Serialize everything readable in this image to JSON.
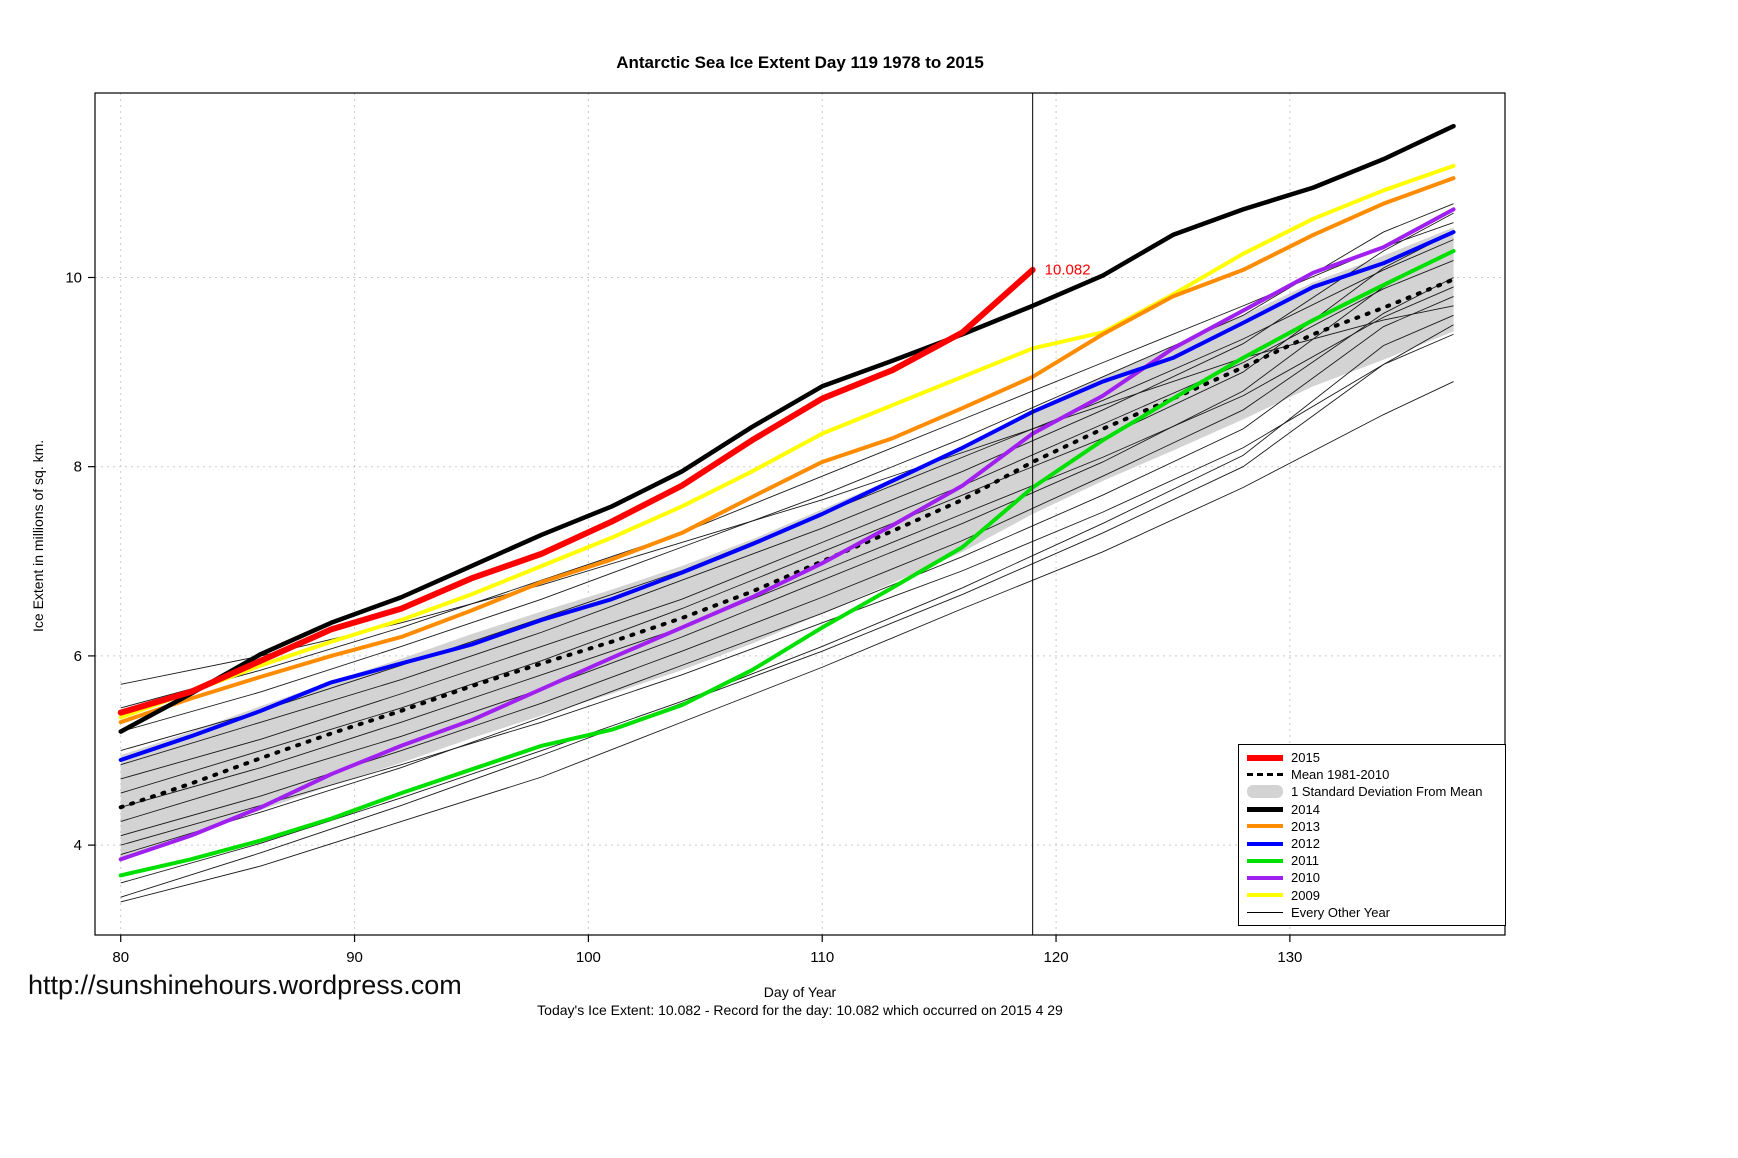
{
  "watermark": "http://sunshinehours.wordpress.com",
  "footer": "Today's Ice Extent: 10.082  - Record for the day: 10.082 which occurred on 2015 4 29",
  "chart_data": {
    "type": "line",
    "title": "Antarctic Sea Ice Extent Day 119 1978 to 2015",
    "xlabel": "Day of Year",
    "ylabel": "Ice Extent in millions of sq. km.",
    "xlim": [
      78.9,
      139.2
    ],
    "ylim": [
      3.05,
      11.95
    ],
    "xticks": [
      80,
      90,
      100,
      110,
      120,
      130
    ],
    "yticks": [
      4,
      6,
      8,
      10
    ],
    "grid": true,
    "legend_position": "bottom-right",
    "vline_x": 119,
    "annotation": {
      "text": "10.082",
      "x": 119,
      "y": 10.082,
      "color": "#FF0000"
    },
    "x": [
      80,
      83,
      86,
      89,
      92,
      95,
      98,
      101,
      104,
      107,
      110,
      113,
      116,
      119,
      122,
      125,
      128,
      131,
      134,
      137
    ],
    "band": {
      "label": "1 Standard Deviation From Mean",
      "color": "#D3D3D3",
      "upper": [
        4.95,
        5.2,
        5.47,
        5.73,
        5.97,
        6.23,
        6.47,
        6.7,
        6.95,
        7.23,
        7.55,
        7.87,
        8.2,
        8.6,
        8.95,
        9.27,
        9.6,
        9.95,
        10.23,
        10.53
      ],
      "lower": [
        3.85,
        4.1,
        4.37,
        4.63,
        4.87,
        5.13,
        5.37,
        5.6,
        5.85,
        6.13,
        6.45,
        6.77,
        7.1,
        7.5,
        7.85,
        8.17,
        8.5,
        8.85,
        9.13,
        9.43
      ]
    },
    "series": [
      {
        "name": "Mean 1981-2010",
        "color": "#000000",
        "width": 4,
        "dash": "2 9",
        "values": [
          4.4,
          4.65,
          4.92,
          5.18,
          5.42,
          5.68,
          5.92,
          6.15,
          6.4,
          6.68,
          7.0,
          7.32,
          7.65,
          8.05,
          8.4,
          8.72,
          9.05,
          9.4,
          9.68,
          9.98
        ]
      },
      {
        "name": "2011",
        "color": "#00E000",
        "width": 4,
        "values": [
          3.68,
          3.85,
          4.05,
          4.28,
          4.55,
          4.8,
          5.05,
          5.22,
          5.48,
          5.85,
          6.3,
          6.72,
          7.15,
          7.78,
          8.28,
          8.72,
          9.15,
          9.55,
          9.92,
          10.28
        ]
      },
      {
        "name": "2010",
        "color": "#A020F0",
        "width": 4,
        "values": [
          3.85,
          4.1,
          4.4,
          4.75,
          5.05,
          5.32,
          5.65,
          5.98,
          6.3,
          6.62,
          6.98,
          7.38,
          7.8,
          8.35,
          8.75,
          9.25,
          9.65,
          10.05,
          10.32,
          10.72
        ]
      },
      {
        "name": "2009",
        "color": "#FFFF00",
        "width": 4,
        "values": [
          5.35,
          5.62,
          5.9,
          6.15,
          6.38,
          6.65,
          6.95,
          7.25,
          7.58,
          7.95,
          8.35,
          8.65,
          8.95,
          9.25,
          9.42,
          9.82,
          10.25,
          10.62,
          10.92,
          11.18
        ]
      },
      {
        "name": "2012",
        "color": "#0000FF",
        "width": 4,
        "values": [
          4.9,
          5.15,
          5.42,
          5.72,
          5.92,
          6.12,
          6.38,
          6.6,
          6.88,
          7.18,
          7.5,
          7.85,
          8.2,
          8.58,
          8.9,
          9.15,
          9.52,
          9.9,
          10.15,
          10.48
        ]
      },
      {
        "name": "2013",
        "color": "#FF8C00",
        "width": 4,
        "values": [
          5.3,
          5.55,
          5.78,
          6.0,
          6.2,
          6.48,
          6.78,
          7.02,
          7.3,
          7.68,
          8.05,
          8.3,
          8.62,
          8.95,
          9.4,
          9.8,
          10.08,
          10.45,
          10.78,
          11.05
        ]
      },
      {
        "name": "2014",
        "color": "#000000",
        "width": 4.5,
        "values": [
          5.2,
          5.6,
          6.02,
          6.35,
          6.62,
          6.95,
          7.28,
          7.58,
          7.95,
          8.42,
          8.85,
          9.12,
          9.4,
          9.7,
          10.02,
          10.45,
          10.72,
          10.95,
          11.25,
          11.6
        ]
      },
      {
        "name": "2015",
        "color": "#FF0000",
        "width": 6,
        "x": [
          80,
          83,
          86,
          89,
          92,
          95,
          98,
          101,
          104,
          107,
          110,
          113,
          116,
          119
        ],
        "values": [
          5.4,
          5.62,
          5.95,
          6.28,
          6.5,
          6.82,
          7.08,
          7.42,
          7.8,
          8.28,
          8.72,
          9.02,
          9.42,
          10.08
        ]
      }
    ],
    "background_series": {
      "name": "Every Other Year",
      "color": "#1a1a1a",
      "x": [
        80,
        86,
        92,
        98,
        104,
        110,
        116,
        122,
        128,
        134,
        137
      ],
      "lines": [
        [
          3.4,
          3.78,
          4.25,
          4.72,
          5.3,
          5.88,
          6.5,
          7.1,
          7.78,
          8.55,
          8.9
        ],
        [
          3.6,
          4.02,
          4.5,
          5.0,
          5.52,
          6.1,
          6.72,
          7.4,
          8.12,
          9.28,
          9.6
        ],
        [
          3.9,
          4.35,
          4.82,
          5.35,
          5.9,
          6.45,
          7.05,
          7.7,
          8.4,
          9.48,
          9.8
        ],
        [
          4.1,
          4.52,
          5.0,
          5.5,
          6.05,
          6.62,
          7.22,
          7.9,
          8.6,
          9.62,
          10.0
        ],
        [
          4.25,
          4.7,
          5.15,
          5.65,
          6.2,
          6.8,
          7.4,
          8.05,
          8.8,
          9.9,
          10.28
        ],
        [
          4.4,
          4.82,
          5.3,
          5.8,
          6.3,
          6.9,
          7.5,
          8.1,
          8.75,
          9.58,
          9.9
        ],
        [
          4.55,
          5.0,
          5.45,
          5.95,
          6.5,
          7.1,
          7.7,
          8.3,
          9.0,
          10.1,
          10.48
        ],
        [
          4.7,
          5.12,
          5.6,
          6.1,
          6.6,
          7.2,
          7.8,
          8.45,
          9.1,
          9.88,
          10.18
        ],
        [
          4.85,
          5.3,
          5.75,
          6.25,
          6.8,
          7.35,
          7.95,
          8.6,
          9.3,
          10.28,
          10.68
        ],
        [
          5.0,
          5.42,
          5.9,
          6.4,
          6.9,
          7.5,
          8.1,
          8.7,
          9.35,
          10.08,
          10.4
        ],
        [
          5.2,
          5.62,
          6.1,
          6.6,
          7.15,
          7.7,
          8.3,
          8.95,
          9.6,
          10.48,
          10.78
        ],
        [
          5.45,
          5.85,
          6.3,
          6.8,
          7.3,
          7.9,
          8.5,
          9.1,
          9.7,
          10.32,
          10.58
        ],
        [
          5.7,
          6.0,
          6.35,
          6.75,
          7.2,
          7.65,
          8.15,
          8.65,
          9.15,
          9.55,
          9.7
        ],
        [
          3.45,
          3.92,
          4.42,
          4.95,
          5.5,
          6.05,
          6.65,
          7.3,
          8.0,
          9.08,
          9.5
        ],
        [
          4.0,
          4.42,
          4.85,
          5.3,
          5.8,
          6.35,
          6.9,
          7.52,
          8.2,
          9.08,
          9.4
        ]
      ]
    },
    "legend": [
      {
        "label": "2015",
        "color": "#FF0000",
        "style": "solid",
        "width": 6
      },
      {
        "label": "Mean 1981-2010",
        "color": "#000000",
        "style": "dashed",
        "width": 3
      },
      {
        "label": "1 Standard Deviation From Mean",
        "color": "#D3D3D3",
        "style": "band"
      },
      {
        "label": "2014",
        "color": "#000000",
        "style": "solid",
        "width": 5
      },
      {
        "label": "2013",
        "color": "#FF8C00",
        "style": "solid",
        "width": 4
      },
      {
        "label": "2012",
        "color": "#0000FF",
        "style": "solid",
        "width": 4
      },
      {
        "label": "2011",
        "color": "#00E000",
        "style": "solid",
        "width": 4
      },
      {
        "label": "2010",
        "color": "#A020F0",
        "style": "solid",
        "width": 4
      },
      {
        "label": "2009",
        "color": "#FFFF00",
        "style": "solid",
        "width": 4
      },
      {
        "label": "Every Other Year",
        "color": "#000000",
        "style": "solid",
        "width": 1
      }
    ]
  }
}
